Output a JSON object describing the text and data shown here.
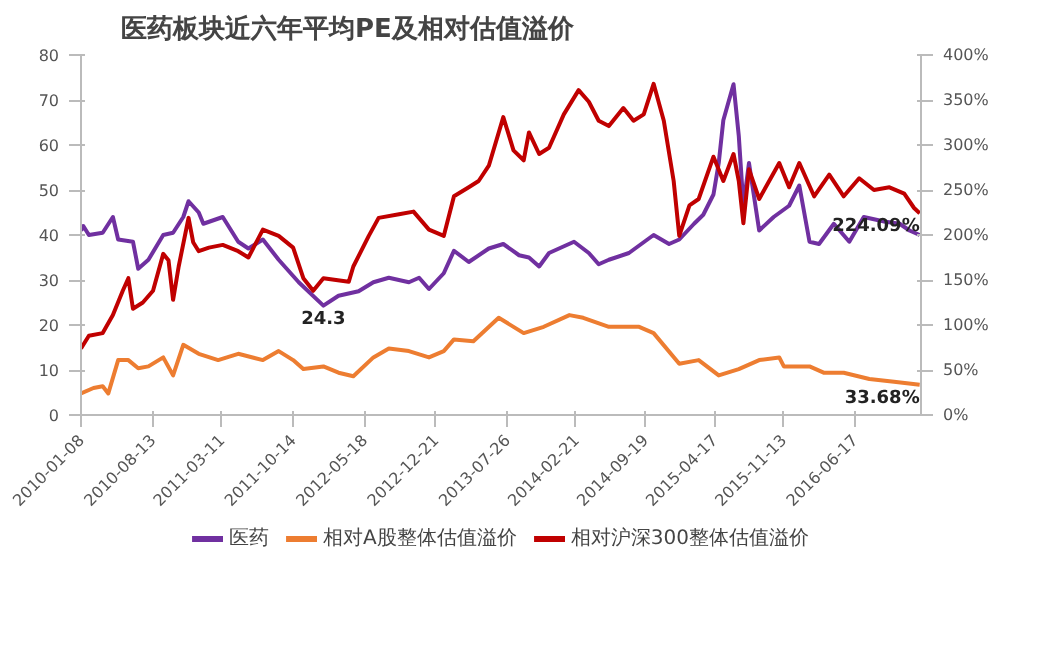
{
  "chart_data": {
    "type": "line",
    "title": "医药板块近六年平均PE及相对估值溢价",
    "xlim": [
      "2010-01-08",
      "2017-01-05"
    ],
    "xticks": [
      "2010-01-08",
      "2010-08-13",
      "2011-03-11",
      "2011-10-14",
      "2012-05-18",
      "2012-12-21",
      "2013-07-26",
      "2014-02-21",
      "2014-09-19",
      "2015-04-17",
      "2015-11-13",
      "2016-06-17"
    ],
    "ylim": [
      0,
      80
    ],
    "yticks": [
      0,
      10,
      20,
      30,
      40,
      50,
      60,
      70,
      80
    ],
    "y2lim": [
      0,
      400
    ],
    "y2ticks": [
      {
        "value": 0,
        "label": "0%"
      },
      {
        "value": 50,
        "label": "50%"
      },
      {
        "value": 100,
        "label": "100%"
      },
      {
        "value": 150,
        "label": "150%"
      },
      {
        "value": 200,
        "label": "200%"
      },
      {
        "value": 250,
        "label": "250%"
      },
      {
        "value": 300,
        "label": "300%"
      },
      {
        "value": 350,
        "label": "350%"
      },
      {
        "value": 400,
        "label": "400%"
      }
    ],
    "grid": false,
    "legend": "bottom",
    "marker": "none",
    "line_style": "solid",
    "series": [
      {
        "name": "医药",
        "color": "#7030a0",
        "x": [
          "2010-01-08",
          "2010-01-15",
          "2010-02-01",
          "2010-03-15",
          "2010-04-15",
          "2010-05-01",
          "2010-06-15",
          "2010-07-01",
          "2010-08-01",
          "2010-09-15",
          "2010-10-15",
          "2010-11-15",
          "2010-12-01",
          "2011-01-01",
          "2011-01-15",
          "2011-03-15",
          "2011-05-01",
          "2011-06-01",
          "2011-07-15",
          "2011-09-01",
          "2011-11-01",
          "2012-01-15",
          "2012-03-01",
          "2012-05-01",
          "2012-06-15",
          "2012-08-01",
          "2012-10-01",
          "2012-11-01",
          "2012-12-01",
          "2013-01-15",
          "2013-02-15",
          "2013-04-01",
          "2013-06-01",
          "2013-07-15",
          "2013-09-01",
          "2013-10-01",
          "2013-11-01",
          "2013-12-01",
          "2014-02-15",
          "2014-04-01",
          "2014-05-01",
          "2014-06-01",
          "2014-08-01",
          "2014-10-15",
          "2014-12-01",
          "2015-01-01",
          "2015-02-15",
          "2015-03-15",
          "2015-04-15",
          "2015-05-01",
          "2015-05-15",
          "2015-06-15",
          "2015-07-01",
          "2015-07-15",
          "2015-08-01",
          "2015-09-01",
          "2015-10-15",
          "2015-12-01",
          "2016-01-01",
          "2016-02-01",
          "2016-03-01",
          "2016-04-15",
          "2016-06-01",
          "2016-07-15",
          "2016-09-15",
          "2016-11-01",
          "2016-12-01",
          "2017-01-01"
        ],
        "values": [
          41,
          42,
          40,
          40.5,
          44,
          39,
          38.5,
          32.5,
          34.5,
          40,
          40.5,
          44,
          47.5,
          45,
          42.5,
          44,
          38.5,
          37,
          39,
          34.5,
          29.5,
          24.3,
          26.5,
          27.5,
          29.5,
          30.5,
          29.5,
          30.5,
          28,
          31.5,
          36.5,
          34,
          37,
          38,
          35.5,
          35,
          33,
          36,
          38.5,
          36,
          33.5,
          34.5,
          36,
          40,
          38,
          39,
          42.5,
          44.5,
          49,
          56,
          65.5,
          73.5,
          62,
          46.5,
          56,
          41,
          44,
          46.5,
          51,
          38.5,
          38,
          42.5,
          38.5,
          44,
          43,
          42.5,
          41,
          40
        ],
        "value_labels": [
          null,
          null,
          null,
          null,
          null,
          null,
          null,
          null,
          null,
          null,
          null,
          null,
          null,
          null,
          null,
          null,
          null,
          null,
          null,
          null,
          null,
          "24.3",
          null,
          null,
          null,
          null,
          null,
          null,
          null,
          null,
          null,
          null,
          null,
          null,
          null,
          null,
          null,
          null,
          null,
          null,
          null,
          null,
          null,
          null,
          null,
          null,
          null,
          null,
          null,
          null,
          null,
          null,
          null,
          null,
          null,
          null,
          null,
          null,
          null,
          null,
          null,
          null,
          null,
          null,
          null,
          null,
          null,
          null
        ]
      },
      {
        "name": "相对A股整体估值溢价",
        "color": "#ed7d31",
        "axis": "y2",
        "x": [
          "2010-01-08",
          "2010-02-15",
          "2010-03-15",
          "2010-04-01",
          "2010-05-01",
          "2010-06-01",
          "2010-07-01",
          "2010-08-01",
          "2010-09-15",
          "2010-10-15",
          "2010-11-15",
          "2011-01-01",
          "2011-03-01",
          "2011-05-01",
          "2011-07-15",
          "2011-09-01",
          "2011-10-15",
          "2011-11-15",
          "2012-01-15",
          "2012-03-01",
          "2012-04-15",
          "2012-06-15",
          "2012-08-01",
          "2012-10-01",
          "2012-12-01",
          "2013-01-15",
          "2013-02-15",
          "2013-04-15",
          "2013-07-01",
          "2013-09-15",
          "2013-11-15",
          "2014-02-01",
          "2014-03-15",
          "2014-06-01",
          "2014-09-01",
          "2014-10-15",
          "2015-01-01",
          "2015-03-01",
          "2015-05-01",
          "2015-07-01",
          "2015-09-01",
          "2015-11-01",
          "2015-11-15",
          "2016-02-01",
          "2016-03-15",
          "2016-05-15",
          "2016-08-01",
          "2016-10-15",
          "2017-01-01"
        ],
        "values": [
          24,
          30,
          32,
          24,
          61,
          61,
          52,
          54,
          64,
          44,
          78,
          68,
          61,
          68,
          61,
          71,
          61,
          51,
          54,
          47,
          43,
          64,
          74,
          71,
          64,
          71,
          84,
          82,
          108,
          91,
          98,
          111,
          108,
          98,
          98,
          91,
          57,
          61,
          44,
          51,
          61,
          64,
          54,
          54,
          47,
          47,
          40,
          37,
          33.68
        ],
        "value_labels": [
          null,
          null,
          null,
          null,
          null,
          null,
          null,
          null,
          null,
          null,
          null,
          null,
          null,
          null,
          null,
          null,
          null,
          null,
          null,
          null,
          null,
          null,
          null,
          null,
          null,
          null,
          null,
          null,
          null,
          null,
          null,
          null,
          null,
          null,
          null,
          null,
          null,
          null,
          null,
          null,
          null,
          null,
          null,
          null,
          null,
          null,
          null,
          null,
          "33.68%"
        ]
      },
      {
        "name": "相对沪深300整体估值溢价",
        "color": "#c00000",
        "axis": "y2",
        "x": [
          "2010-01-08",
          "2010-02-01",
          "2010-03-15",
          "2010-04-15",
          "2010-05-15",
          "2010-06-01",
          "2010-06-15",
          "2010-07-15",
          "2010-08-15",
          "2010-09-15",
          "2010-10-01",
          "2010-10-15",
          "2010-11-01",
          "2010-12-01",
          "2010-12-15",
          "2011-01-01",
          "2011-02-01",
          "2011-03-15",
          "2011-05-01",
          "2011-06-01",
          "2011-07-15",
          "2011-09-01",
          "2011-10-15",
          "2011-11-15",
          "2011-12-15",
          "2012-01-15",
          "2012-04-01",
          "2012-04-15",
          "2012-06-01",
          "2012-07-01",
          "2012-09-01",
          "2012-10-15",
          "2012-12-01",
          "2013-01-15",
          "2013-02-15",
          "2013-04-01",
          "2013-05-01",
          "2013-06-01",
          "2013-07-15",
          "2013-08-15",
          "2013-09-15",
          "2013-10-01",
          "2013-11-01",
          "2013-12-01",
          "2014-01-15",
          "2014-03-01",
          "2014-04-01",
          "2014-05-01",
          "2014-06-01",
          "2014-07-15",
          "2014-08-15",
          "2014-09-15",
          "2014-10-15",
          "2014-11-15",
          "2014-12-15",
          "2015-01-01",
          "2015-02-01",
          "2015-03-01",
          "2015-04-15",
          "2015-05-15",
          "2015-06-15",
          "2015-07-01",
          "2015-07-15",
          "2015-08-01",
          "2015-09-01",
          "2015-11-01",
          "2015-12-01",
          "2016-01-01",
          "2016-02-15",
          "2016-04-01",
          "2016-05-15",
          "2016-07-01",
          "2016-08-15",
          "2016-10-01",
          "2016-11-15",
          "2016-12-15",
          "2017-01-01"
        ],
        "values": [
          74,
          88,
          91,
          111,
          138,
          152,
          118,
          125,
          138,
          179,
          172,
          128,
          165,
          219,
          192,
          182,
          186,
          189,
          182,
          175,
          206,
          199,
          186,
          152,
          138,
          152,
          148,
          165,
          199,
          219,
          223,
          226,
          206,
          199,
          243,
          253,
          260,
          277,
          331,
          294,
          283,
          314,
          290,
          297,
          334,
          361,
          348,
          327,
          321,
          341,
          327,
          334,
          368,
          327,
          260,
          199,
          233,
          240,
          287,
          260,
          290,
          260,
          213,
          273,
          240,
          280,
          253,
          280,
          243,
          267,
          243,
          263,
          250,
          253,
          246,
          230,
          224.09
        ],
        "value_labels": [
          null,
          null,
          null,
          null,
          null,
          null,
          null,
          null,
          null,
          null,
          null,
          null,
          null,
          null,
          null,
          null,
          null,
          null,
          null,
          null,
          null,
          null,
          null,
          null,
          null,
          null,
          null,
          null,
          null,
          null,
          null,
          null,
          null,
          null,
          null,
          null,
          null,
          null,
          null,
          null,
          null,
          null,
          null,
          null,
          null,
          null,
          null,
          null,
          null,
          null,
          null,
          null,
          null,
          null,
          null,
          null,
          null,
          null,
          null,
          null,
          null,
          null,
          null,
          null,
          null,
          null,
          null,
          null,
          null,
          null,
          null,
          null,
          null,
          null,
          null,
          null,
          "224.09%"
        ]
      }
    ]
  }
}
